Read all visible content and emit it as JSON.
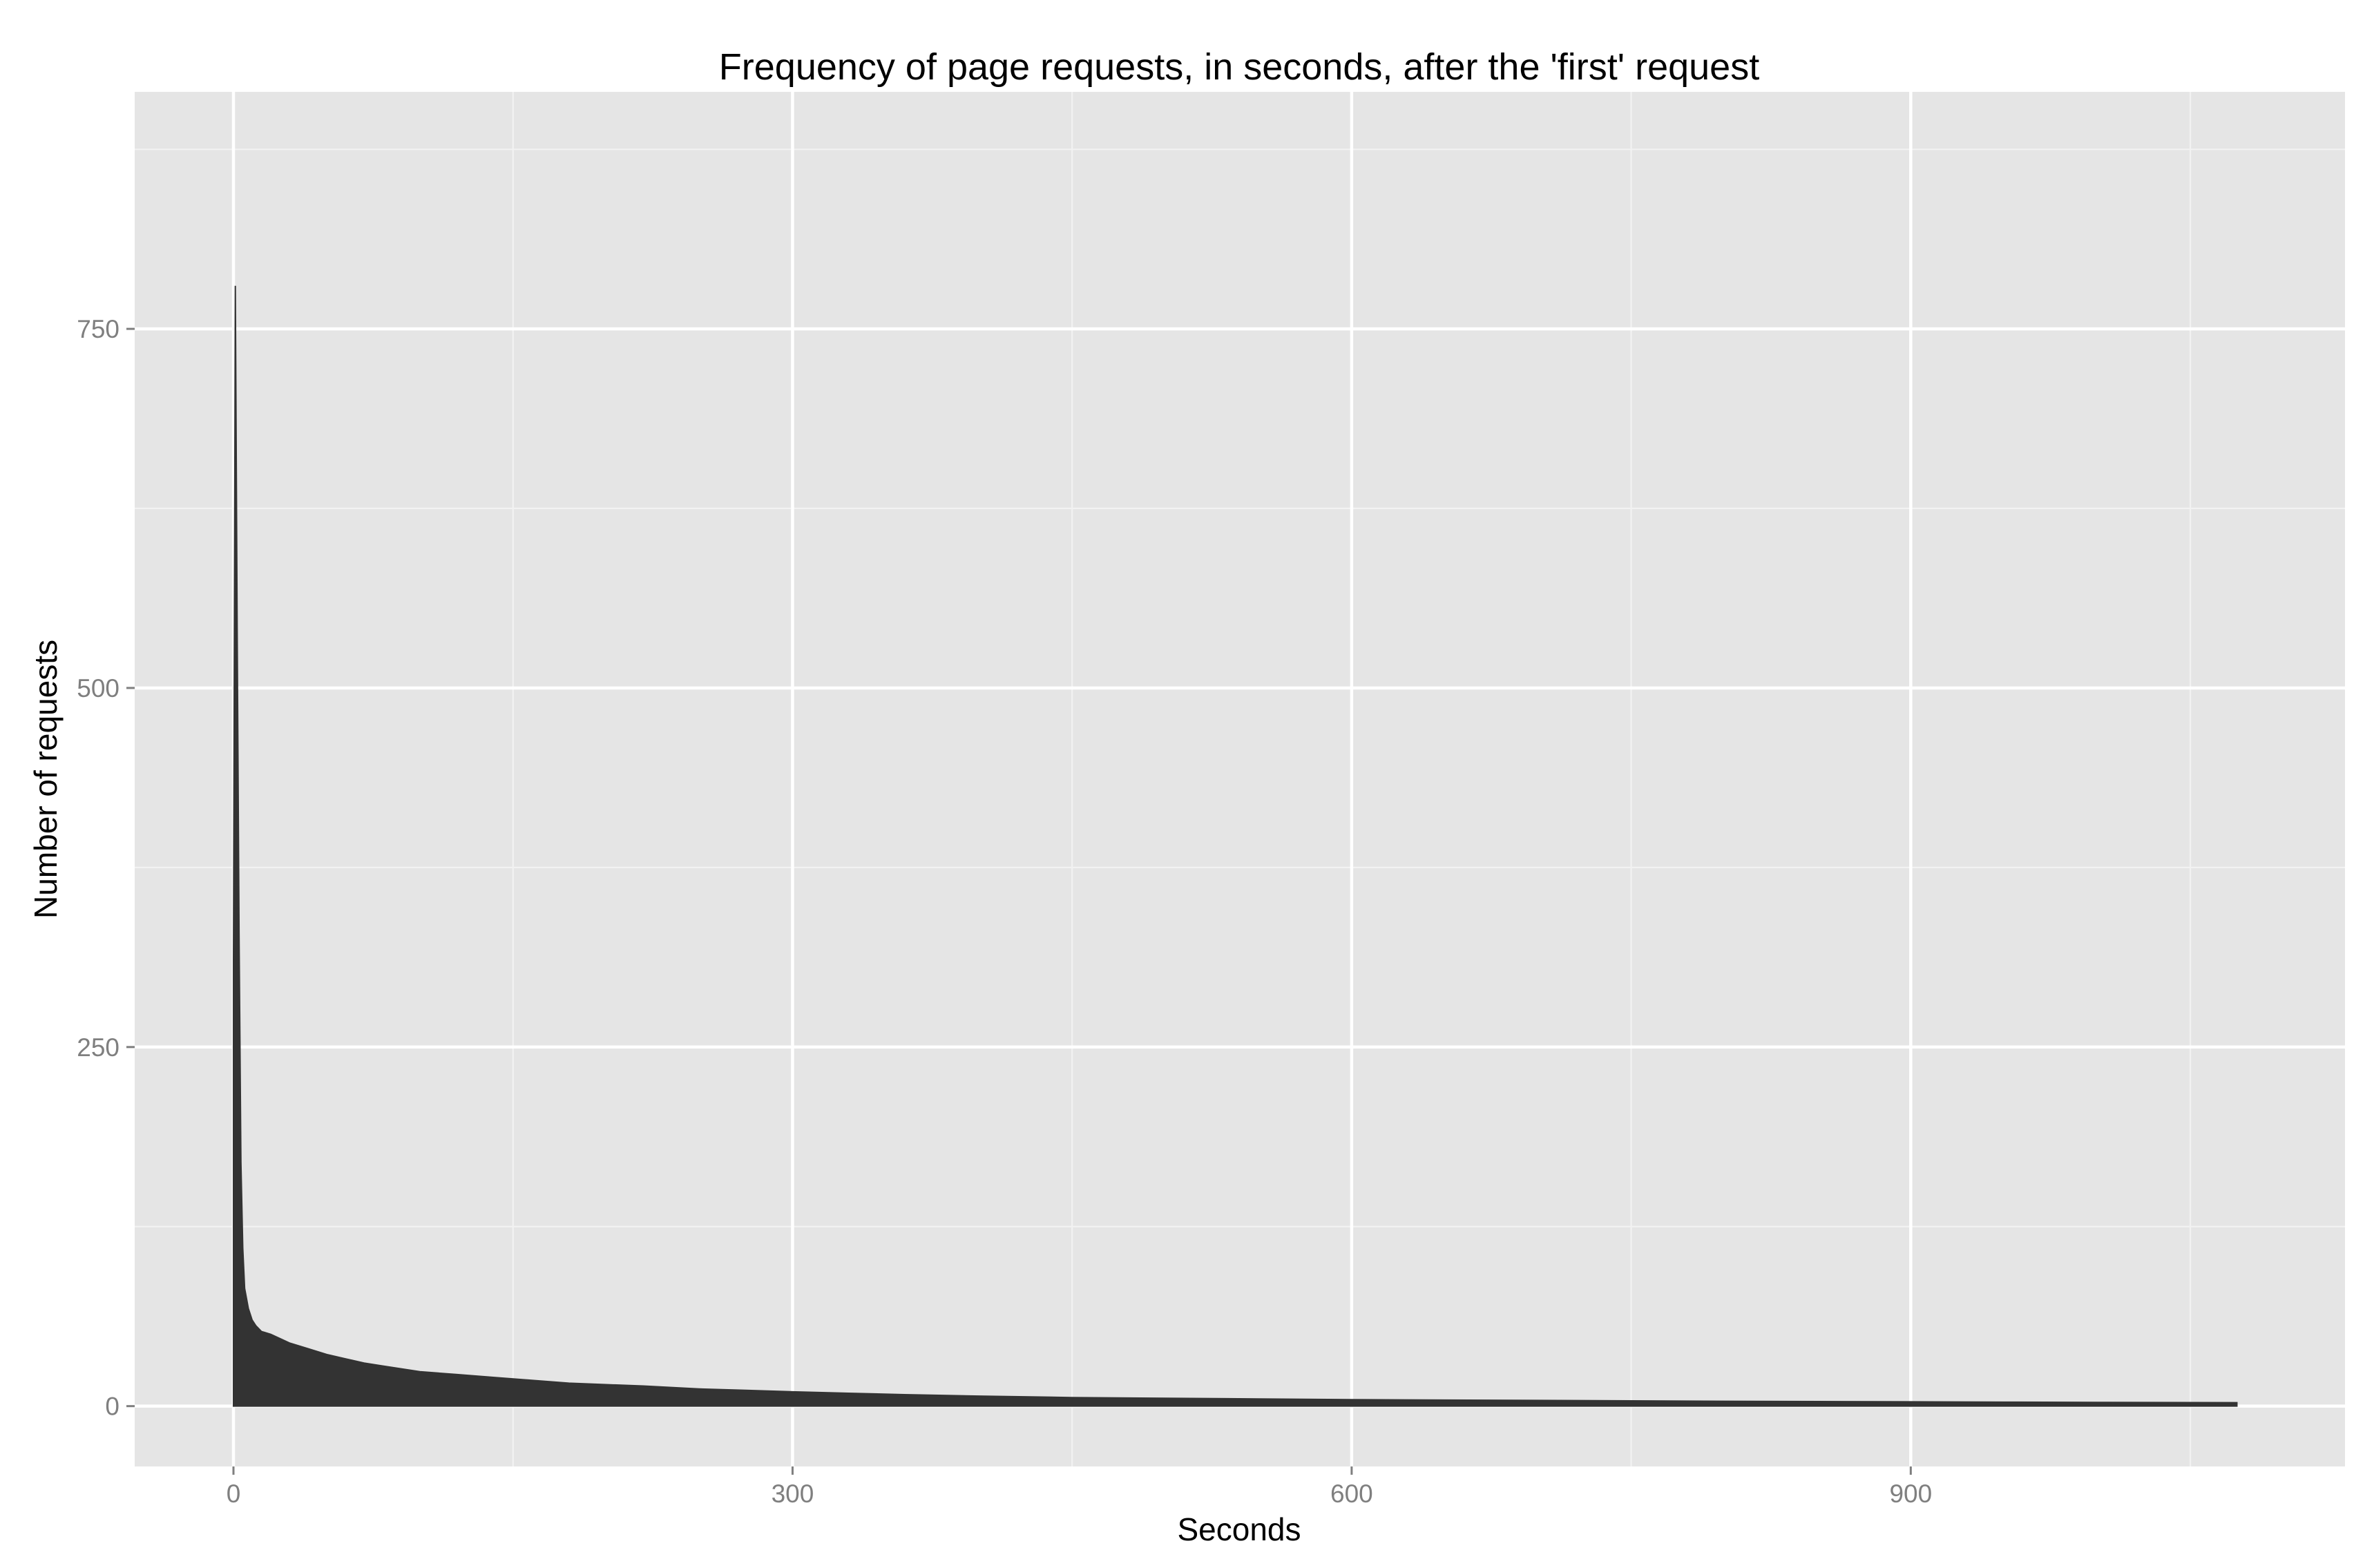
{
  "chart_data": {
    "type": "area",
    "title": "Frequency of page requests, in seconds, after the 'first' request",
    "xlabel": "Seconds",
    "ylabel": "Number of requests",
    "xlim": [
      -53,
      1133
    ],
    "ylim": [
      -42,
      915
    ],
    "x_ticks": [
      0,
      300,
      600,
      900
    ],
    "y_ticks": [
      0,
      250,
      500,
      750
    ],
    "x_minor": [
      150,
      450,
      750,
      1050
    ],
    "y_minor": [
      125,
      375,
      625,
      875
    ],
    "grid": true,
    "legend": "none",
    "colors": {
      "panel": "#e5e5e5",
      "fill": "#333333",
      "grid": "#ffffff"
    },
    "series": [
      {
        "x": [
          0,
          1,
          2,
          3,
          4,
          5,
          6,
          8,
          10,
          12,
          15,
          20,
          25,
          30,
          40,
          50,
          60,
          70,
          80,
          90,
          100,
          120,
          140,
          160,
          180,
          200,
          220,
          250,
          275,
          300,
          330,
          360,
          400,
          450,
          500,
          550,
          600,
          650,
          700,
          750,
          800,
          850,
          900,
          950,
          1000,
          1050,
          1075
        ],
        "values": [
          310,
          780,
          540,
          330,
          170,
          110,
          82,
          68,
          60,
          56,
          52,
          50,
          47,
          44,
          40,
          36,
          33,
          30,
          28,
          26,
          24,
          22,
          20,
          18,
          16,
          15,
          14,
          12,
          11,
          10,
          9,
          8,
          7,
          6,
          5.5,
          5,
          4.5,
          4.2,
          4,
          3.7,
          3.4,
          3.2,
          3,
          2.8,
          2.6,
          2.5,
          2.4
        ]
      }
    ]
  }
}
